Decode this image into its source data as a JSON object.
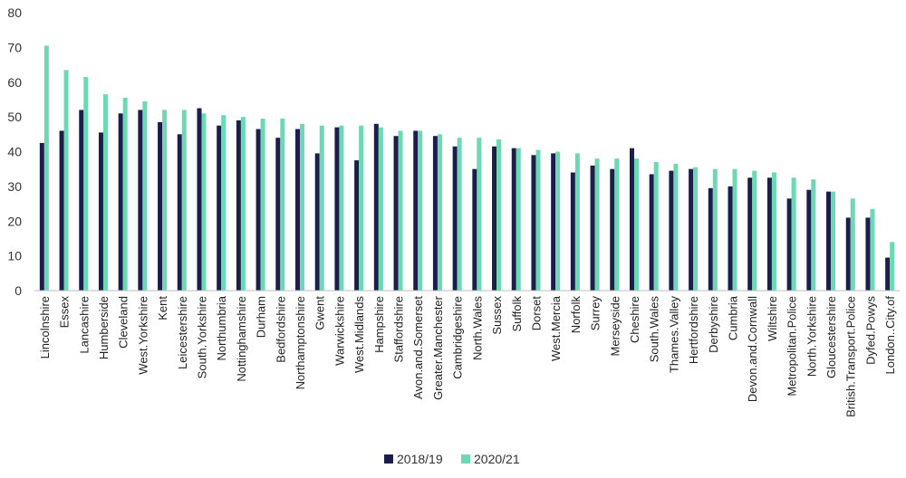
{
  "chart_data": {
    "type": "bar",
    "title": "",
    "xlabel": "",
    "ylabel": "",
    "ylim": [
      0,
      80
    ],
    "yticks": [
      0,
      10,
      20,
      30,
      40,
      50,
      60,
      70,
      80
    ],
    "grid": false,
    "legend_position": "bottom-center",
    "categories": [
      "Lincolnshire",
      "Essex",
      "Lancashire",
      "Humberside",
      "Cleveland",
      "West.Yorkshire",
      "Kent",
      "Leicestershire",
      "South.Yorkshire",
      "Northumbria",
      "Nottinghamshire",
      "Durham",
      "Bedfordshire",
      "Northamptonshire",
      "Gwent",
      "Warwickshire",
      "West.Midlands",
      "Hampshire",
      "Staffordshire",
      "Avon.and.Somerset",
      "Greater.Manchester",
      "Cambridgeshire",
      "North.Wales",
      "Sussex",
      "Suffolk",
      "Dorset",
      "West.Mercia",
      "Norfolk",
      "Surrey",
      "Merseyside",
      "Cheshire",
      "South.Wales",
      "Thames.Valley",
      "Hertfordshire",
      "Derbyshire",
      "Cumbria",
      "Devon.and.Cornwall",
      "Wiltshire",
      "Metropolitan.Police",
      "North.Yorkshire",
      "Gloucestershire",
      "British.Transport.Police",
      "Dyfed.Powys",
      "London..City.of"
    ],
    "series": [
      {
        "name": "2018/19",
        "color": "#1b1d4a",
        "values": [
          42.5,
          46,
          52,
          45.5,
          51,
          52,
          48.5,
          45,
          52.5,
          47.5,
          49,
          46.5,
          44,
          46.5,
          39.5,
          47,
          37.5,
          48,
          44.5,
          46,
          44.5,
          41.5,
          35,
          41.5,
          41,
          39,
          39.5,
          34,
          36,
          35,
          41,
          33.5,
          34.5,
          35,
          29.5,
          30,
          32.5,
          32.5,
          26.5,
          29,
          28.5,
          21,
          21,
          9.5
        ]
      },
      {
        "name": "2020/21",
        "color": "#6dd8b4",
        "values": [
          70.5,
          63.5,
          61.5,
          56.5,
          55.5,
          54.5,
          52,
          52,
          51,
          50.5,
          50,
          49.5,
          49.5,
          48,
          47.5,
          47.5,
          47.5,
          47,
          46,
          46,
          45,
          44,
          44,
          43.5,
          41,
          40.5,
          40,
          39.5,
          38,
          38,
          38,
          37,
          36.5,
          35.5,
          35,
          35,
          34.5,
          34,
          32.5,
          32,
          28.5,
          26.5,
          23.5,
          14
        ]
      }
    ]
  }
}
